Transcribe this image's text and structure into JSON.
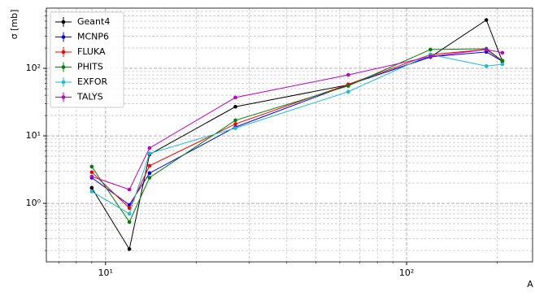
{
  "chart_data": {
    "type": "line",
    "log_x": true,
    "log_y": true,
    "grid": true,
    "legend": "upper left",
    "ylabel": "σ [mb]",
    "xlabel": "A",
    "x": [
      9,
      12,
      14,
      27,
      64,
      120,
      184,
      208
    ],
    "series": [
      {
        "name": "Geant4",
        "color": "#000000",
        "values": [
          1.7,
          0.21,
          5.3,
          27,
          57,
          147,
          520,
          127
        ]
      },
      {
        "name": "MCNP6",
        "color": "#0000ff",
        "values": [
          2.4,
          0.95,
          2.8,
          13.5,
          57,
          148,
          175,
          127
        ]
      },
      {
        "name": "FLUKA",
        "color": "#ff0000",
        "values": [
          2.9,
          0.85,
          3.6,
          15,
          58,
          160,
          190,
          128
        ]
      },
      {
        "name": "PHITS",
        "color": "#008000",
        "values": [
          3.5,
          0.53,
          2.4,
          17,
          55,
          190,
          195,
          130
        ]
      },
      {
        "name": "EXFOR",
        "color": "#17becf",
        "values": [
          1.5,
          0.7,
          5.5,
          13,
          45,
          160,
          108,
          115
        ]
      },
      {
        "name": "TALYS",
        "color": "#bf00bf",
        "values": [
          2.5,
          1.6,
          6.6,
          37,
          80,
          150,
          190,
          170
        ]
      }
    ],
    "xlim": [
      6.36,
      262
    ],
    "ylim": [
      0.136,
      780
    ],
    "xticks": [
      {
        "value": 10,
        "label": "10¹"
      },
      {
        "value": 100,
        "label": "10²"
      }
    ],
    "yticks": [
      {
        "value": 1,
        "label": "10⁰"
      },
      {
        "value": 10,
        "label": "10¹"
      },
      {
        "value": 100,
        "label": "10²"
      }
    ],
    "xminorticks": [
      7,
      8,
      9,
      20,
      30,
      40,
      50,
      60,
      70,
      80,
      90,
      200
    ],
    "yminorticks": [
      0.2,
      0.3,
      0.4,
      0.5,
      0.6,
      0.7,
      0.8,
      0.9,
      2,
      3,
      4,
      5,
      6,
      7,
      8,
      9,
      20,
      30,
      40,
      50,
      60,
      70,
      80,
      90,
      200,
      300,
      400,
      500,
      600,
      700
    ]
  }
}
